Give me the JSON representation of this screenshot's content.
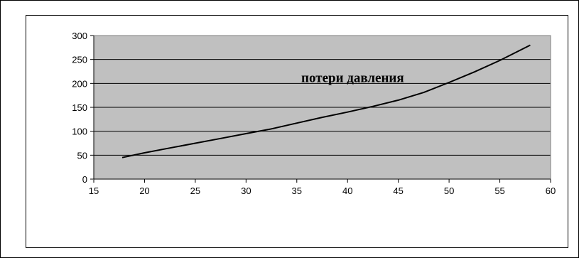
{
  "chart_data": {
    "type": "line",
    "title": "",
    "xlabel": "",
    "ylabel": "",
    "annotation": "потери давления",
    "xlim": [
      15,
      60
    ],
    "ylim": [
      0,
      300
    ],
    "x_ticks": [
      15,
      20,
      25,
      30,
      35,
      40,
      45,
      50,
      55,
      60
    ],
    "y_ticks": [
      0,
      50,
      100,
      150,
      200,
      250,
      300
    ],
    "grid": "horizontal",
    "legend": "none",
    "colors": {
      "plot_background": "#c0c0c0",
      "line": "#000000",
      "grid": "#000000"
    },
    "series": [
      {
        "x": [
          17.8,
          20,
          22.5,
          25,
          27.5,
          30,
          32.5,
          35,
          37.5,
          40,
          42.5,
          45,
          47.5,
          50,
          52.5,
          55,
          58
        ],
        "values": [
          45,
          55,
          65,
          75,
          85,
          95,
          105,
          117,
          129,
          140,
          152,
          165,
          181,
          202,
          224,
          248,
          280
        ]
      }
    ]
  }
}
